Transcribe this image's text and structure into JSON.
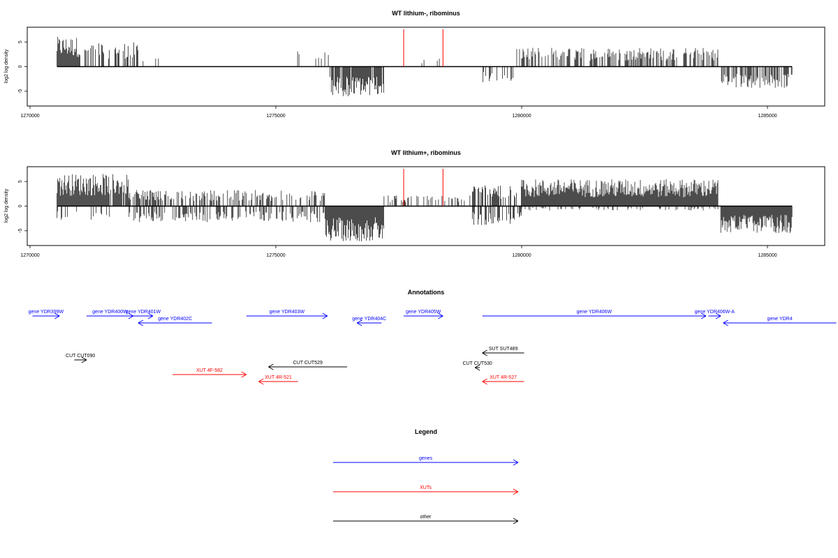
{
  "colors": {
    "genes": "#0000ff",
    "xuts": "#ff0000",
    "other": "#000000",
    "marker": "#ff0000"
  },
  "chart_data": [
    {
      "type": "bar",
      "title": "WT lithium-, ribominus",
      "ylabel": "log2 log density",
      "xlim": [
        1270000,
        1286000
      ],
      "ylim": [
        -8,
        8
      ],
      "x_ticks": [
        "1270000",
        "1275000",
        "1280000",
        "1285000"
      ],
      "y_ticks": [
        "-5",
        "0",
        "5"
      ],
      "markers_x": [
        1277600,
        1278400
      ],
      "regions": [
        {
          "start": 1270550,
          "end": 1271000,
          "sign": 1,
          "amp": 5.5,
          "density": 1.0
        },
        {
          "start": 1271000,
          "end": 1272200,
          "sign": 1,
          "amp": 4.5,
          "density": 0.45
        },
        {
          "start": 1272200,
          "end": 1272700,
          "sign": 1,
          "amp": 2.5,
          "density": 0.1
        },
        {
          "start": 1275300,
          "end": 1276100,
          "sign": 1,
          "amp": 3.0,
          "density": 0.12
        },
        {
          "start": 1276100,
          "end": 1277200,
          "sign": -1,
          "amp": 5.5,
          "density": 0.9
        },
        {
          "start": 1277800,
          "end": 1278400,
          "sign": 1,
          "amp": 1.5,
          "density": 0.1
        },
        {
          "start": 1279200,
          "end": 1279900,
          "sign": -1,
          "amp": 3.0,
          "density": 0.2
        },
        {
          "start": 1279900,
          "end": 1284000,
          "sign": 1,
          "amp": 3.5,
          "density": 0.5
        },
        {
          "start": 1284050,
          "end": 1285500,
          "sign": -1,
          "amp": 4.0,
          "density": 0.6
        }
      ]
    },
    {
      "type": "bar",
      "title": "WT lithium+, ribominus",
      "ylabel": "log2 log density",
      "xlim": [
        1270000,
        1286000
      ],
      "ylim": [
        -8,
        8
      ],
      "x_ticks": [
        "1270000",
        "1275000",
        "1280000",
        "1285000"
      ],
      "y_ticks": [
        "-5",
        "0",
        "5"
      ],
      "markers_x": [
        1277600,
        1278400
      ],
      "regions": [
        {
          "start": 1270550,
          "end": 1272000,
          "sign": 1,
          "amp": 6.0,
          "density": 0.95
        },
        {
          "start": 1270550,
          "end": 1272000,
          "sign": -1,
          "amp": 2.5,
          "density": 0.2
        },
        {
          "start": 1272000,
          "end": 1276000,
          "sign": 1,
          "amp": 3.0,
          "density": 0.45
        },
        {
          "start": 1272000,
          "end": 1276000,
          "sign": -1,
          "amp": 3.0,
          "density": 0.4
        },
        {
          "start": 1276000,
          "end": 1277200,
          "sign": -1,
          "amp": 6.5,
          "density": 1.0
        },
        {
          "start": 1277200,
          "end": 1279000,
          "sign": 1,
          "amp": 2.0,
          "density": 0.3
        },
        {
          "start": 1279000,
          "end": 1280000,
          "sign": 1,
          "amp": 4.0,
          "density": 0.6
        },
        {
          "start": 1279000,
          "end": 1280000,
          "sign": -1,
          "amp": 3.5,
          "density": 0.55
        },
        {
          "start": 1280000,
          "end": 1284000,
          "sign": 1,
          "amp": 5.0,
          "density": 1.0
        },
        {
          "start": 1280000,
          "end": 1284000,
          "sign": -1,
          "amp": 0.8,
          "density": 0.2
        },
        {
          "start": 1284050,
          "end": 1285500,
          "sign": -1,
          "amp": 5.0,
          "density": 1.0
        }
      ]
    }
  ],
  "annotations": {
    "title": "Annotations",
    "genes": [
      {
        "label": "gene YDR399W",
        "x0": 1270050,
        "x1": 1270600,
        "row": 0
      },
      {
        "label": "gene YDR400W",
        "x0": 1271150,
        "x1": 1272100,
        "row": 0
      },
      {
        "label": "gene YDR401W",
        "x0": 1272100,
        "x1": 1272500,
        "row": 0
      },
      {
        "label": "gene YDR402C",
        "x0": 1273700,
        "x1": 1272200,
        "row": 1
      },
      {
        "label": "gene YDR403W",
        "x0": 1274400,
        "x1": 1276050,
        "row": 0
      },
      {
        "label": "gene YDR404C",
        "x0": 1277150,
        "x1": 1276650,
        "row": 1
      },
      {
        "label": "gene YDR405W",
        "x0": 1277600,
        "x1": 1278400,
        "row": 0
      },
      {
        "label": "gene YDR406W",
        "x0": 1279200,
        "x1": 1283750,
        "row": 0
      },
      {
        "label": "gene YDR406W-A",
        "x0": 1283800,
        "x1": 1284050,
        "row": 0
      },
      {
        "label": "gene YDR4",
        "x0": 1286400,
        "x1": 1284100,
        "row": 1
      }
    ],
    "xuts": [
      {
        "label": "XUT 4F-582",
        "x0": 1272900,
        "x1": 1274400,
        "row": 2
      },
      {
        "label": "XUT 4R-521",
        "x0": 1275450,
        "x1": 1274650,
        "row": 3
      },
      {
        "label": "XUT 4R-527",
        "x0": 1280050,
        "x1": 1279200,
        "row": 3
      }
    ],
    "others": [
      {
        "label": "CUT CUT090",
        "x0": 1270900,
        "x1": 1271150,
        "row": 0
      },
      {
        "label": "CUT CUT529",
        "x0": 1276450,
        "x1": 1274850,
        "row": 1
      },
      {
        "label": "SUT SUT489",
        "x0": 1280050,
        "x1": 1279200,
        "row": 2
      },
      {
        "label": "CUT CUT530",
        "x0": 1279150,
        "x1": 1279050,
        "row": 3
      }
    ]
  },
  "legend": {
    "title": "Legend",
    "items": [
      {
        "label": "genes",
        "color": "#0000ff"
      },
      {
        "label": "XUTs",
        "color": "#ff0000"
      },
      {
        "label": "other",
        "color": "#000000"
      }
    ]
  }
}
